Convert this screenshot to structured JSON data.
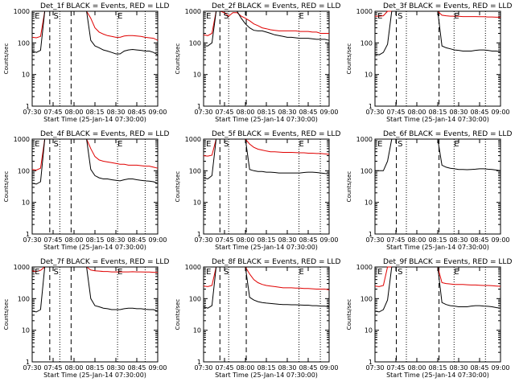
{
  "chart_data": [
    {
      "type": "line",
      "title": "Det_1f BLACK = Events, RED = LLD",
      "xlabel": "Start Time (25-Jan-14 07:30:00)",
      "ylabel": "Counts/sec",
      "yscale": "log",
      "ylim": [
        1,
        1000
      ],
      "x_ticks": [
        "07:30",
        "07:45",
        "08:00",
        "08:15",
        "08:30",
        "08:45",
        "09:00"
      ],
      "y_ticks": [
        "1",
        "10",
        "100",
        "1000"
      ],
      "markers": [
        {
          "label": "E",
          "x": 0.02
        },
        {
          "label": "S",
          "x": 0.17
        },
        {
          "label": "E",
          "x": 0.68
        }
      ],
      "dashed_lines": [
        0.14,
        0.31
      ],
      "dotted_lines": [
        0.22,
        0.68,
        0.9
      ],
      "series": [
        {
          "name": "RED",
          "color": "#e00000",
          "values": [
            150,
            145,
            160,
            1000,
            1000,
            1000,
            1000,
            1000,
            1000,
            1000,
            1000,
            1000,
            1000,
            1000,
            600,
            300,
            220,
            190,
            170,
            160,
            150,
            150,
            165,
            170,
            170,
            165,
            160,
            150,
            145,
            140,
            120
          ]
        },
        {
          "name": "BLACK",
          "color": "#000000",
          "values": [
            55,
            50,
            58,
            1000,
            1000,
            1000,
            1000,
            1000,
            1000,
            1000,
            1000,
            1000,
            1000,
            1000,
            120,
            80,
            70,
            60,
            55,
            50,
            45,
            45,
            55,
            60,
            62,
            60,
            58,
            55,
            55,
            50,
            42
          ]
        }
      ]
    },
    {
      "type": "line",
      "title": "Det_2f BLACK = Events, RED = LLD",
      "xlabel": "Start Time (25-Jan-14 07:30:00)",
      "ylabel": "Counts/sec",
      "yscale": "log",
      "ylim": [
        1,
        1000
      ],
      "x_ticks": [
        "07:30",
        "07:45",
        "08:00",
        "08:15",
        "08:30",
        "08:45",
        "09:00"
      ],
      "y_ticks": [
        "1",
        "10",
        "100",
        "1000"
      ],
      "markers": [
        {
          "label": "E",
          "x": 0.02
        },
        {
          "label": "S",
          "x": 0.16
        },
        {
          "label": "E",
          "x": 0.76
        }
      ],
      "dashed_lines": [
        0.13,
        0.34
      ],
      "dotted_lines": [
        0.2,
        0.76,
        0.93
      ],
      "series": [
        {
          "name": "RED",
          "color": "#e00000",
          "values": [
            180,
            170,
            200,
            1000,
            1000,
            900,
            700,
            900,
            900,
            700,
            600,
            500,
            400,
            350,
            300,
            280,
            260,
            250,
            240,
            240,
            240,
            240,
            240,
            230,
            230,
            230,
            220,
            220,
            200,
            200,
            200
          ]
        },
        {
          "name": "BLACK",
          "color": "#000000",
          "values": [
            80,
            80,
            100,
            1000,
            1000,
            1000,
            1000,
            1000,
            1000,
            600,
            400,
            300,
            250,
            240,
            240,
            220,
            200,
            180,
            170,
            160,
            150,
            150,
            145,
            140,
            140,
            140,
            135,
            130,
            130,
            130,
            120
          ]
        }
      ]
    },
    {
      "type": "line",
      "title": "Det_3f BLACK = Events, RED = LLD",
      "xlabel": "Start Time (25-Jan-14 07:30:00)",
      "ylabel": "Counts/sec",
      "yscale": "log",
      "ylim": [
        1,
        1000
      ],
      "x_ticks": [
        "07:30",
        "07:45",
        "08:00",
        "08:15",
        "08:30",
        "08:45",
        "09:00"
      ],
      "y_ticks": [
        "1",
        "10",
        "100",
        "1000"
      ],
      "markers": [
        {
          "label": "E",
          "x": 0.02
        },
        {
          "label": "S",
          "x": 0.18
        },
        {
          "label": "E",
          "x": 0.63
        }
      ],
      "dashed_lines": [
        0.17,
        0.51
      ],
      "dotted_lines": [
        0.25,
        0.63,
        0.88
      ],
      "series": [
        {
          "name": "RED",
          "color": "#e00000",
          "values": [
            700,
            700,
            720,
            1000,
            1000,
            1000,
            1000,
            1000,
            1000,
            1000,
            1000,
            1000,
            1000,
            1000,
            1000,
            1000,
            750,
            720,
            700,
            700,
            690,
            680,
            680,
            680,
            680,
            670,
            670,
            660,
            660,
            650,
            650
          ]
        },
        {
          "name": "BLACK",
          "color": "#000000",
          "values": [
            45,
            42,
            50,
            90,
            1000,
            1000,
            1000,
            1000,
            1000,
            1000,
            1000,
            1000,
            1000,
            1000,
            1000,
            1000,
            80,
            70,
            65,
            60,
            58,
            55,
            55,
            55,
            58,
            60,
            60,
            58,
            55,
            55,
            52
          ]
        }
      ]
    },
    {
      "type": "line",
      "title": "Det_4f BLACK = Events, RED = LLD",
      "xlabel": "Start Time (25-Jan-14 07:30:00)",
      "ylabel": "Counts/sec",
      "yscale": "log",
      "ylim": [
        1,
        1000
      ],
      "x_ticks": [
        "07:30",
        "07:45",
        "08:00",
        "08:15",
        "08:30",
        "08:45",
        "09:00"
      ],
      "y_ticks": [
        "1",
        "10",
        "100",
        "1000"
      ],
      "markers": [
        {
          "label": "E",
          "x": 0.02
        },
        {
          "label": "S",
          "x": 0.17
        },
        {
          "label": "E",
          "x": 0.68
        }
      ],
      "dashed_lines": [
        0.14,
        0.31
      ],
      "dotted_lines": [
        0.22,
        0.68,
        0.9
      ],
      "series": [
        {
          "name": "RED",
          "color": "#e00000",
          "values": [
            110,
            105,
            120,
            1000,
            1000,
            1000,
            1000,
            1000,
            1000,
            1000,
            1000,
            1000,
            1000,
            1000,
            500,
            280,
            220,
            200,
            190,
            180,
            170,
            160,
            160,
            150,
            150,
            150,
            145,
            140,
            140,
            130,
            120
          ]
        },
        {
          "name": "BLACK",
          "color": "#000000",
          "values": [
            40,
            38,
            45,
            1000,
            1000,
            1000,
            1000,
            1000,
            1000,
            1000,
            1000,
            1000,
            1000,
            1000,
            110,
            70,
            60,
            55,
            55,
            52,
            50,
            48,
            52,
            55,
            55,
            52,
            50,
            48,
            47,
            45,
            40
          ]
        }
      ]
    },
    {
      "type": "line",
      "title": "Det_5f BLACK = Events, RED = LLD",
      "xlabel": "Start Time (25-Jan-14 07:30:00)",
      "ylabel": "Counts/sec",
      "yscale": "log",
      "ylim": [
        1,
        1000
      ],
      "x_ticks": [
        "07:30",
        "07:45",
        "08:00",
        "08:15",
        "08:30",
        "08:45",
        "09:00"
      ],
      "y_ticks": [
        "1",
        "10",
        "100",
        "1000"
      ],
      "markers": [
        {
          "label": "E",
          "x": 0.02
        },
        {
          "label": "S",
          "x": 0.16
        },
        {
          "label": "E",
          "x": 0.76
        }
      ],
      "dashed_lines": [
        0.13,
        0.34
      ],
      "dotted_lines": [
        0.2,
        0.76,
        0.93
      ],
      "series": [
        {
          "name": "RED",
          "color": "#e00000",
          "values": [
            300,
            290,
            310,
            1000,
            1000,
            1000,
            1000,
            1000,
            1000,
            1000,
            1000,
            700,
            550,
            480,
            450,
            420,
            400,
            400,
            390,
            380,
            380,
            380,
            375,
            370,
            370,
            360,
            360,
            350,
            350,
            340,
            330
          ]
        },
        {
          "name": "BLACK",
          "color": "#000000",
          "values": [
            60,
            55,
            70,
            1000,
            1000,
            1000,
            1000,
            1000,
            1000,
            1000,
            1000,
            110,
            100,
            95,
            95,
            90,
            90,
            88,
            85,
            85,
            85,
            85,
            85,
            85,
            88,
            90,
            90,
            88,
            85,
            82,
            80
          ]
        }
      ]
    },
    {
      "type": "line",
      "title": "Det_6f BLACK = Events, RED = LLD",
      "xlabel": "Start Time (25-Jan-14 07:30:00)",
      "ylabel": "Counts/sec",
      "yscale": "log",
      "ylim": [
        1,
        1000
      ],
      "x_ticks": [
        "07:30",
        "07:45",
        "08:00",
        "08:15",
        "08:30",
        "08:45",
        "09:00"
      ],
      "y_ticks": [
        "1",
        "10",
        "100",
        "1000"
      ],
      "markers": [
        {
          "label": "E",
          "x": 0.02
        },
        {
          "label": "S",
          "x": 0.18
        },
        {
          "label": "E",
          "x": 0.63
        }
      ],
      "dashed_lines": [
        0.17,
        0.51
      ],
      "dotted_lines": [
        0.25,
        0.63,
        0.88
      ],
      "series": [
        {
          "name": "BLACK",
          "color": "#000000",
          "values": [
            100,
            100,
            100,
            200,
            1000,
            1000,
            1000,
            1000,
            1000,
            1000,
            1000,
            1000,
            1000,
            1000,
            1000,
            1000,
            150,
            130,
            120,
            115,
            110,
            110,
            108,
            110,
            112,
            115,
            115,
            112,
            110,
            105,
            100
          ]
        }
      ]
    },
    {
      "type": "line",
      "title": "Det_7f BLACK = Events, RED = LLD",
      "xlabel": "Start Time (25-Jan-14 07:30:00)",
      "ylabel": "Counts/sec",
      "yscale": "log",
      "ylim": [
        1,
        1000
      ],
      "x_ticks": [
        "07:30",
        "07:45",
        "08:00",
        "08:15",
        "08:30",
        "08:45",
        "09:00"
      ],
      "y_ticks": [
        "1",
        "10",
        "100",
        "1000"
      ],
      "markers": [
        {
          "label": "E",
          "x": 0.02
        },
        {
          "label": "S",
          "x": 0.17
        },
        {
          "label": "E",
          "x": 0.68
        }
      ],
      "dashed_lines": [
        0.14,
        0.31
      ],
      "dotted_lines": [
        0.22,
        0.68,
        0.9
      ],
      "series": [
        {
          "name": "RED",
          "color": "#e00000",
          "values": [
            750,
            720,
            780,
            1000,
            1000,
            1000,
            1000,
            1000,
            1000,
            1000,
            1000,
            1000,
            1000,
            1000,
            800,
            760,
            740,
            720,
            720,
            700,
            700,
            700,
            700,
            700,
            710,
            700,
            700,
            690,
            690,
            680,
            670
          ]
        },
        {
          "name": "BLACK",
          "color": "#000000",
          "values": [
            40,
            38,
            45,
            1000,
            1000,
            1000,
            1000,
            1000,
            1000,
            1000,
            1000,
            1000,
            1000,
            1000,
            100,
            60,
            55,
            50,
            48,
            45,
            45,
            45,
            48,
            50,
            50,
            48,
            48,
            46,
            45,
            45,
            40
          ]
        }
      ]
    },
    {
      "type": "line",
      "title": "Det_8f BLACK = Events, RED = LLD",
      "xlabel": "Start Time (25-Jan-14 07:30:00)",
      "ylabel": "Counts/sec",
      "yscale": "log",
      "ylim": [
        1,
        1000
      ],
      "x_ticks": [
        "07:30",
        "07:45",
        "08:00",
        "08:15",
        "08:30",
        "08:45",
        "09:00"
      ],
      "y_ticks": [
        "1",
        "10",
        "100",
        "1000"
      ],
      "markers": [
        {
          "label": "E",
          "x": 0.02
        },
        {
          "label": "S",
          "x": 0.16
        },
        {
          "label": "E",
          "x": 0.76
        }
      ],
      "dashed_lines": [
        0.13,
        0.34
      ],
      "dotted_lines": [
        0.2,
        0.76,
        0.93
      ],
      "series": [
        {
          "name": "RED",
          "color": "#e00000",
          "values": [
            250,
            240,
            260,
            1000,
            1000,
            1000,
            1000,
            1000,
            1000,
            1000,
            1000,
            600,
            400,
            320,
            280,
            260,
            250,
            240,
            230,
            220,
            220,
            220,
            215,
            215,
            210,
            210,
            205,
            200,
            200,
            200,
            190
          ]
        },
        {
          "name": "BLACK",
          "color": "#000000",
          "values": [
            55,
            50,
            60,
            1000,
            1000,
            1000,
            1000,
            1000,
            1000,
            1000,
            1000,
            110,
            90,
            80,
            75,
            72,
            70,
            68,
            66,
            65,
            65,
            64,
            64,
            63,
            62,
            62,
            60,
            60,
            58,
            58,
            55
          ]
        }
      ]
    },
    {
      "type": "line",
      "title": "Det_9f BLACK = Events, RED = LLD",
      "xlabel": "Start Time (25-Jan-14 07:30:00)",
      "ylabel": "Counts/sec",
      "yscale": "log",
      "ylim": [
        1,
        1000
      ],
      "x_ticks": [
        "07:30",
        "07:45",
        "08:00",
        "08:15",
        "08:30",
        "08:45",
        "09:00"
      ],
      "y_ticks": [
        "1",
        "10",
        "100",
        "1000"
      ],
      "markers": [
        {
          "label": "E",
          "x": 0.02
        },
        {
          "label": "S",
          "x": 0.18
        },
        {
          "label": "E",
          "x": 0.63
        }
      ],
      "dashed_lines": [
        0.17,
        0.51
      ],
      "dotted_lines": [
        0.25,
        0.63,
        0.88
      ],
      "series": [
        {
          "name": "RED",
          "color": "#e00000",
          "values": [
            250,
            240,
            260,
            1000,
            1000,
            1000,
            1000,
            1000,
            1000,
            1000,
            1000,
            1000,
            1000,
            1000,
            1000,
            1000,
            320,
            300,
            290,
            280,
            280,
            280,
            275,
            270,
            270,
            265,
            260,
            260,
            255,
            250,
            245
          ]
        },
        {
          "name": "BLACK",
          "color": "#000000",
          "values": [
            40,
            38,
            45,
            90,
            1000,
            1000,
            1000,
            1000,
            1000,
            1000,
            1000,
            1000,
            1000,
            1000,
            1000,
            1000,
            75,
            65,
            60,
            58,
            55,
            55,
            55,
            58,
            60,
            60,
            58,
            57,
            55,
            52,
            50
          ]
        }
      ]
    }
  ]
}
